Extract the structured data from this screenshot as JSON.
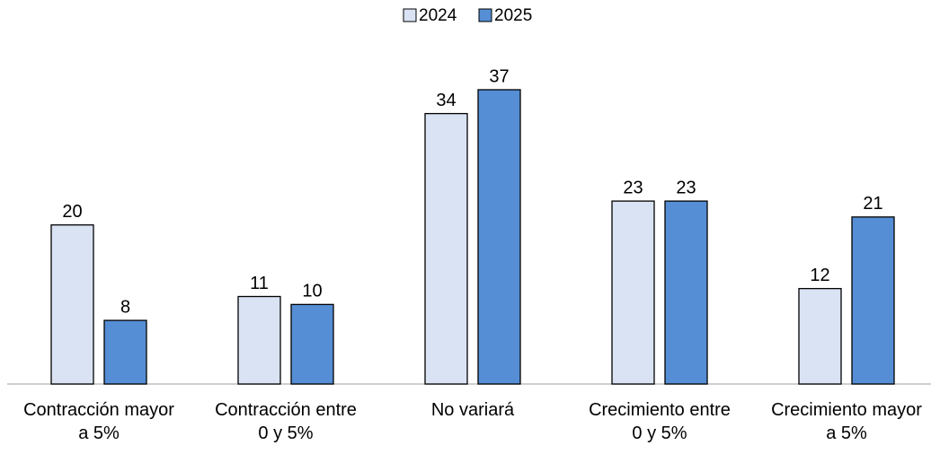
{
  "chart_data": {
    "type": "bar",
    "categories": [
      "Contracción mayor a 5%",
      "Contracción entre 0 y 5%",
      "No variará",
      "Crecimiento entre 0 y 5%",
      "Crecimiento mayor a 5%"
    ],
    "series": [
      {
        "name": "2024",
        "color": "#dae3f3",
        "values": [
          20,
          11,
          34,
          23,
          12
        ]
      },
      {
        "name": "2025",
        "color": "#558ed5",
        "values": [
          8,
          10,
          37,
          23,
          21
        ]
      }
    ],
    "legend": "top"
  }
}
